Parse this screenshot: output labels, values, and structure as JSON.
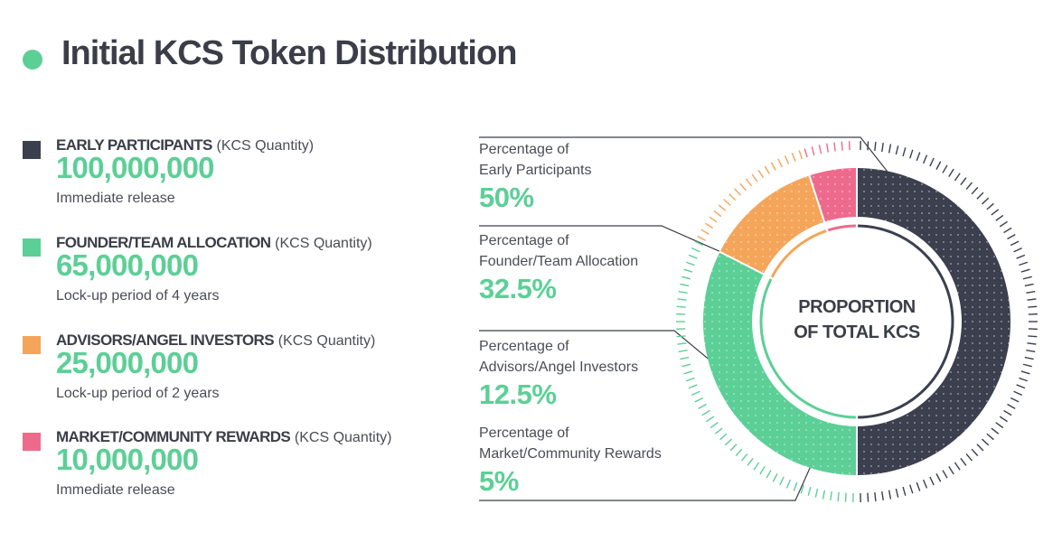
{
  "title": "Initial KCS Token Distribution",
  "colors": {
    "accent": "#5ccf96",
    "early": "#3b3f4e",
    "founder": "#5ccf96",
    "advisors": "#f4a55a",
    "market": "#ee6a8c",
    "text": "#3b3e48"
  },
  "legend": [
    {
      "name": "EARLY PARTICIPANTS",
      "unit": "(KCS Quantity)",
      "quantity": "100,000,000",
      "note": "Immediate release",
      "color": "#3b3f4e"
    },
    {
      "name": "FOUNDER/TEAM ALLOCATION",
      "unit": "(KCS Quantity)",
      "quantity": "65,000,000",
      "note": "Lock-up period of 4 years",
      "color": "#5ccf96"
    },
    {
      "name": "ADVISORS/ANGEL INVESTORS",
      "unit": "(KCS Quantity)",
      "quantity": "25,000,000",
      "note": "Lock-up period of 2 years",
      "color": "#f4a55a"
    },
    {
      "name": "MARKET/COMMUNITY REWARDS",
      "unit": "(KCS Quantity)",
      "quantity": "10,000,000",
      "note": "Immediate release",
      "color": "#ee6a8c"
    }
  ],
  "callouts": [
    {
      "label_line1": "Percentage of",
      "label_line2": "Early Participants",
      "value": "50%"
    },
    {
      "label_line1": "Percentage of",
      "label_line2": "Founder/Team Allocation",
      "value": "32.5%"
    },
    {
      "label_line1": "Percentage of",
      "label_line2": "Advisors/Angel Investors",
      "value": "12.5%"
    },
    {
      "label_line1": "Percentage of",
      "label_line2": "Market/Community Rewards",
      "value": "5%"
    }
  ],
  "center_label": {
    "line1": "PROPORTION",
    "line2": "OF TOTAL KCS"
  },
  "chart_data": {
    "type": "pie",
    "title": "Initial KCS Token Distribution",
    "categories": [
      "Early Participants",
      "Founder/Team Allocation",
      "Advisors/Angel Investors",
      "Market/Community Rewards"
    ],
    "values": [
      50,
      32.5,
      12.5,
      5
    ],
    "quantities": [
      100000000,
      65000000,
      25000000,
      10000000
    ],
    "colors": [
      "#3b3f4e",
      "#5ccf96",
      "#f4a55a",
      "#ee6a8c"
    ],
    "legend": "left"
  }
}
